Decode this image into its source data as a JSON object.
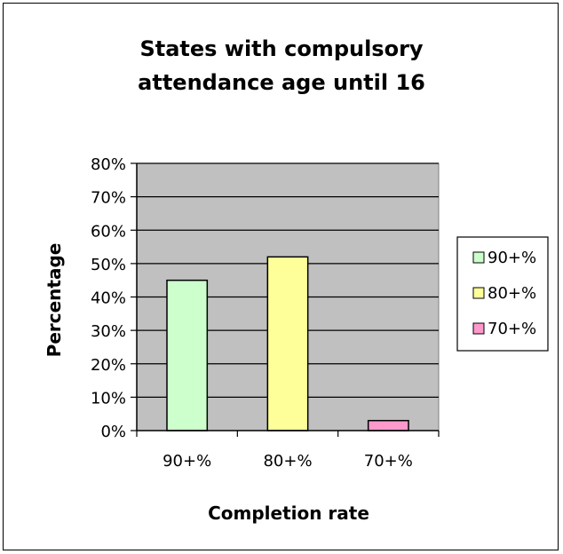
{
  "chart_data": {
    "type": "bar",
    "title_lines": [
      "States with compulsory",
      "attendance age until 16"
    ],
    "xlabel": "Completion rate",
    "ylabel": "Percentage",
    "categories": [
      "90+%",
      "80+%",
      "70+%"
    ],
    "values": [
      45,
      52,
      3
    ],
    "ylim": [
      0,
      80
    ],
    "ytick_labels": [
      "0%",
      "10%",
      "20%",
      "30%",
      "40%",
      "50%",
      "60%",
      "70%",
      "80%"
    ],
    "ytick_values": [
      0,
      10,
      20,
      30,
      40,
      50,
      60,
      70,
      80
    ],
    "grid": true,
    "legend_position": "right",
    "legend": [
      "90+%",
      "80+%",
      "70+%"
    ],
    "colors": [
      "#ccffcc",
      "#ffff99",
      "#ff99cc"
    ],
    "plot_background": "#c0c0c0"
  }
}
